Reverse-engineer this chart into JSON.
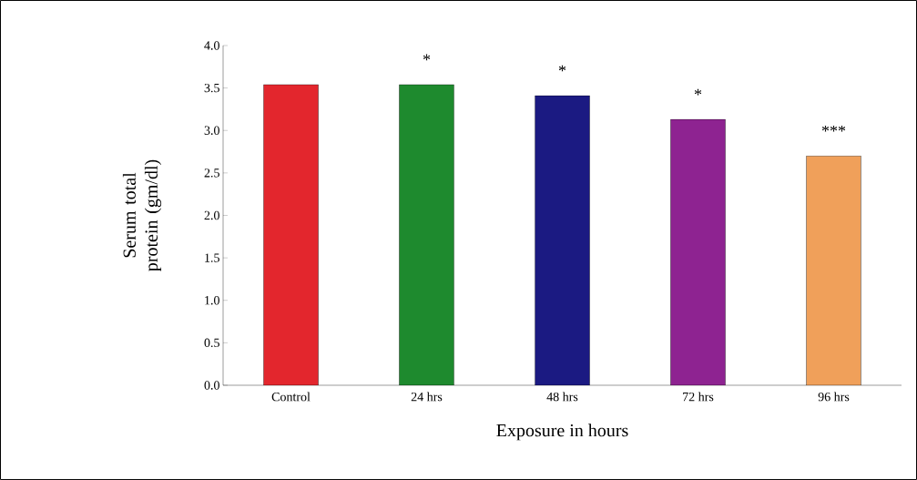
{
  "chart_data": {
    "type": "bar",
    "categories": [
      "Control",
      "24 hrs",
      "48 hrs",
      "72 hrs",
      "96 hrs"
    ],
    "values": [
      3.54,
      3.54,
      3.41,
      3.13,
      2.7
    ],
    "colors": [
      "#e3262d",
      "#1e8a2e",
      "#1b1a82",
      "#8e2391",
      "#f0a05a"
    ],
    "xlabel": "Exposure in hours",
    "ylabel": "Serum total protein (gm/dl)",
    "ylim": [
      0,
      4
    ],
    "yticks": [
      {
        "value": 0,
        "label": "0.0"
      },
      0.5,
      {
        "value": 1,
        "label": "1.0"
      },
      1.5,
      {
        "value": 2,
        "label": "2.0"
      },
      2.5,
      {
        "value": 3,
        "label": "3.0"
      },
      3.5,
      {
        "value": 4,
        "label": "4.0"
      }
    ],
    "annotations": [
      "*",
      "*",
      "*",
      "***"
    ],
    "grid": false
  }
}
